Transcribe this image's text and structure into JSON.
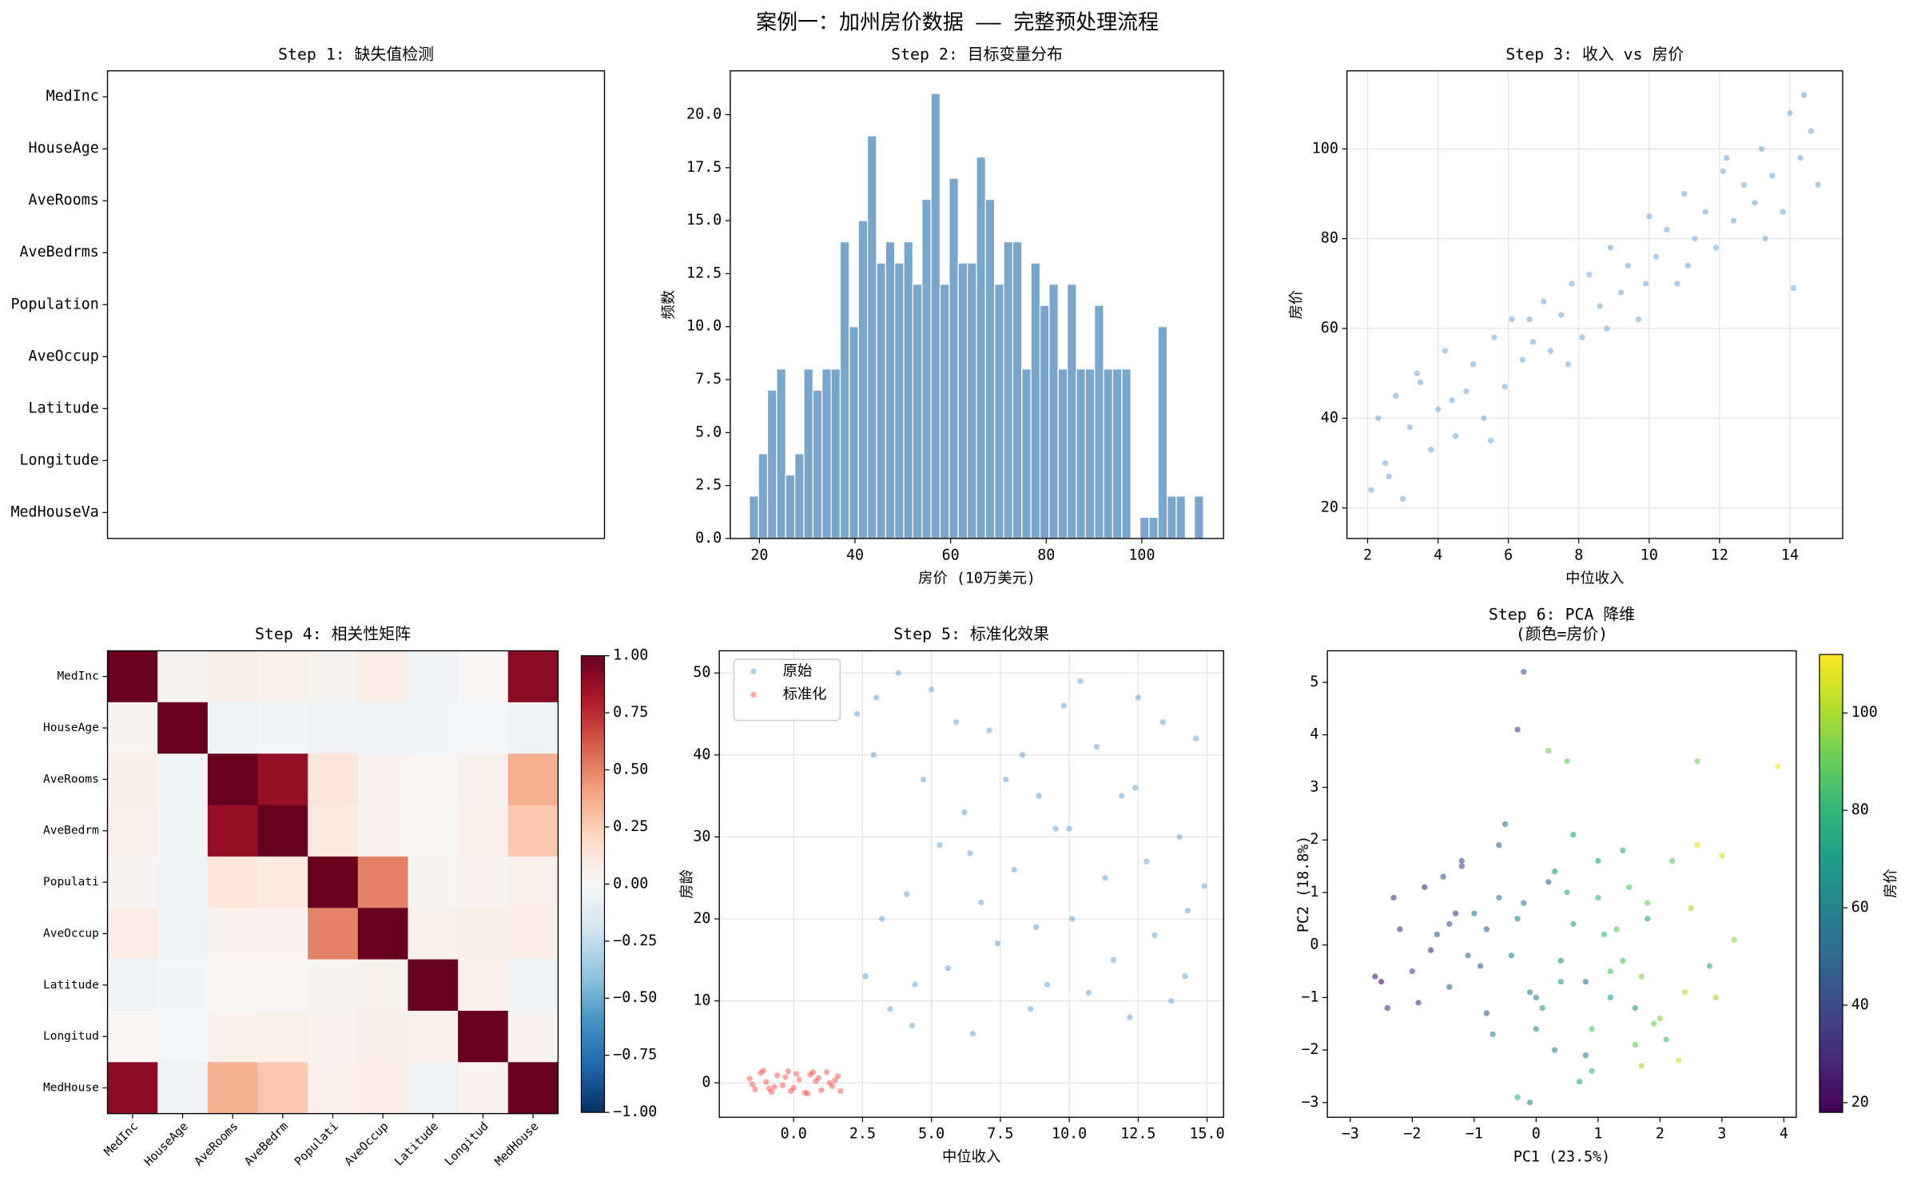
{
  "title": "案例一：加州房价数据 —— 完整预处理流程",
  "chart_data": [
    {
      "type": "missing-map",
      "title": "Step 1: 缺失值检测",
      "rows": [
        "MedInc",
        "HouseAge",
        "AveRooms",
        "AveBedrms",
        "Population",
        "AveOccup",
        "Latitude",
        "Longitude",
        "MedHouseVa"
      ]
    },
    {
      "type": "histogram",
      "title": "Step 2: 目标变量分布",
      "xlabel": "房价 (10万美元)",
      "ylabel": "频数",
      "color": "#7ba6cb",
      "bins": [
        17.9,
        19.8,
        21.7,
        23.6,
        25.5,
        27.4,
        29.3,
        31.2,
        33.1,
        35.0,
        36.9,
        38.8,
        40.7,
        42.6,
        44.5,
        46.4,
        48.3,
        50.2,
        52.1,
        54.0,
        55.9,
        57.8,
        59.7,
        61.6,
        63.5,
        65.4,
        67.3,
        69.2,
        71.1,
        73.0,
        74.9,
        76.8,
        78.7,
        80.6,
        82.5,
        84.4,
        86.3,
        88.2,
        90.1,
        92.0,
        93.9,
        95.8,
        97.7,
        99.6,
        101.5,
        103.4,
        105.3,
        107.2,
        109.1,
        111.0,
        112.9
      ],
      "counts": [
        2,
        4,
        7,
        8,
        3,
        4,
        8,
        7,
        8,
        8,
        14,
        10,
        15,
        19,
        13,
        14,
        13,
        14,
        12,
        16,
        21,
        12,
        17,
        13,
        13,
        18,
        16,
        12,
        14,
        14,
        8,
        13,
        11,
        12,
        8,
        12,
        8,
        8,
        11,
        8,
        8,
        8,
        0,
        1,
        1,
        10,
        2,
        2,
        0,
        2
      ],
      "xlim": [
        13.9,
        117.1
      ],
      "xticks": [
        20,
        40,
        60,
        80,
        100
      ],
      "ylim": [
        0,
        22.07
      ],
      "yticks": [
        {
          "value": 0,
          "label": "0.0"
        },
        2.5,
        {
          "value": 5,
          "label": "5.0"
        },
        7.5,
        {
          "value": 10,
          "label": "10.0"
        },
        12.5,
        {
          "value": 15,
          "label": "15.0"
        },
        17.5,
        {
          "value": 20,
          "label": "20.0"
        }
      ],
      "grid": false
    },
    {
      "type": "scatter",
      "title": "Step 3: 收入 vs 房价",
      "xlabel": "中位收入",
      "ylabel": "房价",
      "grid": true,
      "xlim": [
        1.41,
        15.5
      ],
      "xticks": [
        2,
        4,
        6,
        8,
        10,
        12,
        14
      ],
      "ylim": [
        13.2,
        117.4
      ],
      "yticks": [
        20,
        40,
        60,
        80,
        100
      ],
      "series": [
        {
          "color": "#5f9bc9",
          "opacity": 0.5,
          "x": [
            2.1,
            2.3,
            2.5,
            2.8,
            3.0,
            3.2,
            3.5,
            3.8,
            4.0,
            4.2,
            4.5,
            4.8,
            5.0,
            5.3,
            5.6,
            5.9,
            6.1,
            6.4,
            6.7,
            7.0,
            7.2,
            7.5,
            7.8,
            8.1,
            8.3,
            8.6,
            8.9,
            9.2,
            9.4,
            9.7,
            10.0,
            10.2,
            10.5,
            10.8,
            11.0,
            11.3,
            11.6,
            11.9,
            12.1,
            12.4,
            12.7,
            13.0,
            13.2,
            13.5,
            13.8,
            14.0,
            14.3,
            14.6,
            14.8,
            2.6,
            3.4,
            4.4,
            5.5,
            6.6,
            7.7,
            8.8,
            9.9,
            11.1,
            12.2,
            13.3,
            14.1,
            14.4
          ],
          "y": [
            24,
            40,
            30,
            45,
            22,
            38,
            48,
            33,
            42,
            55,
            36,
            46,
            52,
            40,
            58,
            47,
            62,
            53,
            57,
            66,
            55,
            63,
            70,
            58,
            72,
            65,
            78,
            68,
            74,
            62,
            85,
            76,
            82,
            70,
            90,
            80,
            86,
            78,
            95,
            84,
            92,
            88,
            100,
            94,
            86,
            108,
            98,
            104,
            92,
            27,
            50,
            44,
            35,
            62,
            52,
            60,
            70,
            74,
            98,
            80,
            69,
            112
          ]
        }
      ]
    },
    {
      "type": "heatmap",
      "title": "Step 4: 相关性矩阵",
      "colormap": "RdBu_r",
      "rows": [
        "MedInc",
        "HouseAge",
        "AveRooms",
        "AveBedrm",
        "Populati",
        "AveOccup",
        "Latitude",
        "Longitud",
        "MedHouse"
      ],
      "columns": [
        "MedInc",
        "HouseAge",
        "AveRooms",
        "AveBedrm",
        "Populati",
        "AveOccup",
        "Latitude",
        "Longitud",
        "MedHouse"
      ],
      "values": [
        [
          1,
          0.02,
          0.06,
          0.05,
          0.02,
          0.07,
          -0.03,
          0.01,
          0.9
        ],
        [
          0.02,
          1,
          -0.03,
          -0.02,
          -0.04,
          -0.04,
          -0.02,
          -0.01,
          -0.04
        ],
        [
          0.06,
          -0.03,
          1,
          0.88,
          0.12,
          0.03,
          0.01,
          0.04,
          0.36
        ],
        [
          0.05,
          -0.02,
          0.88,
          1,
          0.1,
          0.03,
          0.01,
          0.05,
          0.27
        ],
        [
          0.02,
          -0.04,
          0.12,
          0.1,
          1,
          0.5,
          0.02,
          0.03,
          0.05
        ],
        [
          0.07,
          -0.04,
          0.03,
          0.03,
          0.5,
          1,
          0.04,
          0.06,
          0.07
        ],
        [
          -0.03,
          -0.02,
          0.01,
          0.01,
          0.02,
          0.04,
          1,
          0.05,
          -0.04
        ],
        [
          0.01,
          -0.01,
          0.04,
          0.05,
          0.03,
          0.06,
          0.05,
          1,
          0.03
        ],
        [
          0.9,
          -0.04,
          0.36,
          0.27,
          0.05,
          0.07,
          -0.04,
          0.03,
          1
        ]
      ],
      "clim": [
        -1,
        1
      ],
      "cbar_ticks": [
        {
          "value": -1,
          "label": "−1.00"
        },
        {
          "value": -0.75,
          "label": "−0.75"
        },
        {
          "value": -0.5,
          "label": "−0.50"
        },
        {
          "value": -0.25,
          "label": "−0.25"
        },
        {
          "value": 0,
          "label": "0.00"
        },
        {
          "value": 0.25,
          "label": "0.25"
        },
        {
          "value": 0.5,
          "label": "0.50"
        },
        {
          "value": 0.75,
          "label": "0.75"
        },
        {
          "value": 1,
          "label": "1.00"
        }
      ]
    },
    {
      "type": "scatter",
      "title": "Step 5: 标准化效果",
      "xlabel": "中位收入",
      "ylabel": "房龄",
      "grid": true,
      "legend": "upper left",
      "xlim": [
        -2.7,
        15.6
      ],
      "xticks": [
        {
          "value": 0,
          "label": "0.0"
        },
        2.5,
        {
          "value": 5,
          "label": "5.0"
        },
        7.5,
        {
          "value": 10,
          "label": "10.0"
        },
        12.5,
        {
          "value": 15,
          "label": "15.0"
        }
      ],
      "ylim": [
        -4.2,
        52.7
      ],
      "yticks": [
        0,
        10,
        20,
        30,
        40,
        50
      ],
      "series": [
        {
          "name": "原始",
          "color": "#5f9bc9",
          "opacity": 0.5,
          "x": [
            2.3,
            2.6,
            2.9,
            3.2,
            3.5,
            3.8,
            4.1,
            4.4,
            4.7,
            5.0,
            5.3,
            5.6,
            5.9,
            6.2,
            6.5,
            6.8,
            7.1,
            7.4,
            7.7,
            8.0,
            8.3,
            8.6,
            8.9,
            9.2,
            9.5,
            9.8,
            10.1,
            10.4,
            10.7,
            11.0,
            11.3,
            11.6,
            11.9,
            12.2,
            12.5,
            12.8,
            13.1,
            13.4,
            13.7,
            14.0,
            14.3,
            14.6,
            14.9,
            3.0,
            4.3,
            6.4,
            8.8,
            10.0,
            12.4,
            14.2
          ],
          "y": [
            45,
            13,
            40,
            20,
            9,
            50,
            23,
            12,
            37,
            48,
            29,
            14,
            44,
            33,
            6,
            22,
            43,
            17,
            37,
            26,
            40,
            9,
            35,
            12,
            31,
            46,
            20,
            49,
            11,
            41,
            25,
            15,
            35,
            8,
            47,
            27,
            18,
            44,
            10,
            30,
            21,
            42,
            24,
            47,
            7,
            28,
            19,
            31,
            36,
            13
          ]
        },
        {
          "name": "标准化",
          "color": "#ff0000",
          "opacity": 0.35,
          "x": [
            -1.6,
            -1.4,
            -1.2,
            -1.0,
            -0.8,
            -0.6,
            -0.4,
            -0.2,
            0.0,
            0.2,
            0.4,
            0.6,
            0.8,
            1.0,
            1.2,
            1.4,
            1.6,
            1.7,
            -1.5,
            -1.1,
            -0.7,
            -0.3,
            0.1,
            0.5,
            0.9,
            1.3,
            -0.9,
            -0.1,
            0.7,
            1.5
          ],
          "y": [
            0.5,
            -0.8,
            1.2,
            0.1,
            -1.1,
            0.9,
            -0.3,
            1.4,
            -0.6,
            0.4,
            -1.2,
            1.0,
            0.2,
            -0.9,
            1.3,
            -0.4,
            0.8,
            -1.0,
            -0.2,
            1.5,
            -0.5,
            0.7,
            1.1,
            -1.3,
            0.6,
            0.0,
            -0.7,
            -1.0,
            1.3,
            0.3
          ]
        }
      ]
    },
    {
      "type": "scatter",
      "title": [
        "Step 6: PCA 降维",
        "(颜色=房价)"
      ],
      "xlabel": "PC1 (23.5%)",
      "ylabel": "PC2 (18.8%)",
      "grid": false,
      "xlim": [
        -3.37,
        4.2
      ],
      "xticks": [
        {
          "value": -3,
          "label": "−3"
        },
        {
          "value": -2,
          "label": "−2"
        },
        {
          "value": -1,
          "label": "−1"
        },
        0,
        1,
        2,
        3,
        4
      ],
      "ylim": [
        -3.28,
        5.6
      ],
      "yticks": [
        {
          "value": -3,
          "label": "−3"
        },
        {
          "value": -2,
          "label": "−2"
        },
        {
          "value": -1,
          "label": "−1"
        },
        0,
        1,
        2,
        3,
        4,
        5
      ],
      "colormap": "viridis",
      "clim": [
        18,
        112
      ],
      "cbar_ticks": [
        20,
        40,
        60,
        80,
        100
      ],
      "cbar_label": "房价",
      "series": [
        {
          "opacity": 0.6,
          "x": [
            -2.6,
            -2.4,
            -2.2,
            -2.0,
            -1.8,
            -1.6,
            -1.4,
            -1.2,
            -1.0,
            -0.8,
            -0.6,
            -0.4,
            -0.2,
            0.0,
            0.2,
            0.4,
            0.6,
            0.8,
            1.0,
            1.2,
            1.4,
            1.6,
            1.8,
            2.0,
            2.2,
            2.4,
            2.6,
            2.8,
            3.0,
            3.2,
            -2.3,
            -1.9,
            -1.5,
            -1.1,
            -0.7,
            -0.3,
            0.1,
            0.5,
            0.9,
            1.3,
            1.7,
            2.1,
            2.5,
            2.9,
            -1.3,
            -0.9,
            -0.5,
            -0.1,
            0.3,
            0.7,
            1.1,
            1.5,
            1.9,
            -1.7,
            -0.8,
            0.0,
            0.6,
            1.2,
            1.8,
            2.3,
            -0.2,
            0.5,
            1.4,
            -1.2,
            -0.3,
            0.8,
            1.6,
            3.9,
            2.6,
            -0.3,
            -0.1,
            0.2,
            0.9,
            -2.5,
            -1.4,
            0.3,
            1.0,
            1.7,
            -0.6,
            0.4
          ],
          "y": [
            -0.6,
            -1.2,
            0.3,
            -0.5,
            1.1,
            0.2,
            -0.8,
            1.5,
            0.6,
            -1.3,
            1.9,
            -0.2,
            0.8,
            -1.6,
            1.2,
            -0.7,
            0.4,
            -2.1,
            0.9,
            -1.0,
            -0.3,
            -1.9,
            0.5,
            -1.4,
            1.6,
            -0.9,
            3.5,
            -0.4,
            1.7,
            0.1,
            0.9,
            -1.1,
            1.3,
            -0.2,
            -1.7,
            0.5,
            -1.2,
            1.0,
            -2.4,
            0.3,
            -0.6,
            -1.8,
            0.7,
            -1.0,
            0.6,
            -0.4,
            2.3,
            -0.9,
            1.4,
            -2.6,
            0.2,
            1.1,
            -1.5,
            -0.1,
            0.3,
            -1.0,
            2.1,
            -0.5,
            0.8,
            -2.2,
            5.2,
            3.5,
            1.8,
            1.6,
            4.1,
            -0.7,
            -1.2,
            3.4,
            1.9,
            -2.9,
            -3.0,
            3.7,
            -1.6,
            -0.7,
            0.4,
            -2.0,
            1.6,
            -2.3,
            0.9,
            -0.3
          ],
          "c": [
            25,
            30,
            35,
            40,
            28,
            45,
            50,
            38,
            55,
            42,
            48,
            62,
            58,
            66,
            52,
            70,
            75,
            60,
            80,
            68,
            85,
            90,
            72,
            95,
            88,
            100,
            92,
            78,
            105,
            96,
            32,
            36,
            44,
            50,
            58,
            64,
            70,
            76,
            82,
            88,
            94,
            84,
            100,
            98,
            34,
            46,
            52,
            60,
            66,
            74,
            80,
            86,
            92,
            30,
            48,
            62,
            72,
            86,
            90,
            104,
            45,
            90,
            75,
            40,
            38,
            55,
            70,
            110,
            108,
            78,
            60,
            92,
            86,
            22,
            42,
            64,
            74,
            98,
            56,
            66
          ]
        }
      ]
    }
  ]
}
